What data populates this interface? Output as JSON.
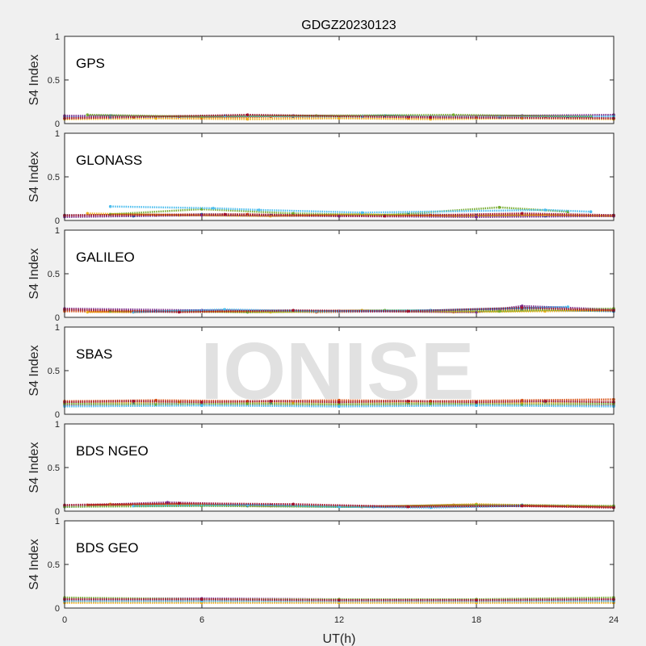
{
  "chart_data": {
    "type": "scatter",
    "title": "GDGZ20230123",
    "xlabel": "UT(h)",
    "ylabel": "S4 Index",
    "xlim": [
      0,
      24
    ],
    "ylim": [
      0,
      1
    ],
    "xticks": [
      "0",
      "6",
      "12",
      "18",
      "24"
    ],
    "yticks": [
      "0",
      "0.5",
      "1"
    ],
    "watermark": "IONISE",
    "colors": [
      "#0072bd",
      "#d95319",
      "#edb120",
      "#7e2f8e",
      "#77ac30",
      "#4dbeee",
      "#a2142f"
    ],
    "panels": [
      {
        "label": "GPS",
        "series": [
          {
            "x": [
              0,
              2,
              4,
              6,
              8,
              10,
              12,
              14,
              16,
              18,
              20,
              22,
              24
            ],
            "y": [
              0.08,
              0.09,
              0.07,
              0.08,
              0.09,
              0.08,
              0.08,
              0.09,
              0.08,
              0.07,
              0.09,
              0.08,
              0.09
            ]
          },
          {
            "x": [
              0,
              3,
              6,
              9,
              12,
              15,
              18,
              21,
              24
            ],
            "y": [
              0.06,
              0.07,
              0.06,
              0.08,
              0.07,
              0.06,
              0.07,
              0.08,
              0.06
            ]
          },
          {
            "x": [
              0,
              4,
              8,
              12,
              16,
              20,
              24
            ],
            "y": [
              0.05,
              0.06,
              0.05,
              0.06,
              0.05,
              0.06,
              0.05
            ]
          },
          {
            "x": [
              0,
              5,
              10,
              15,
              20,
              24
            ],
            "y": [
              0.09,
              0.08,
              0.09,
              0.08,
              0.09,
              0.1
            ]
          },
          {
            "x": [
              1,
              6,
              11,
              17,
              23
            ],
            "y": [
              0.1,
              0.08,
              0.09,
              0.1,
              0.08
            ]
          },
          {
            "x": [
              2,
              7,
              13,
              19,
              24
            ],
            "y": [
              0.07,
              0.09,
              0.08,
              0.07,
              0.08
            ]
          },
          {
            "x": [
              0,
              8,
              16,
              24
            ],
            "y": [
              0.06,
              0.1,
              0.07,
              0.06
            ]
          }
        ]
      },
      {
        "label": "GLONASS",
        "series": [
          {
            "x": [
              0,
              3,
              6,
              9,
              12,
              15,
              18,
              21,
              24
            ],
            "y": [
              0.06,
              0.05,
              0.07,
              0.06,
              0.05,
              0.07,
              0.06,
              0.05,
              0.06
            ]
          },
          {
            "x": [
              0,
              4,
              8,
              12,
              16,
              20,
              24
            ],
            "y": [
              0.05,
              0.06,
              0.07,
              0.05,
              0.06,
              0.07,
              0.05
            ]
          },
          {
            "x": [
              1,
              5,
              9,
              13,
              17,
              21,
              24
            ],
            "y": [
              0.08,
              0.06,
              0.05,
              0.07,
              0.05,
              0.06,
              0.05
            ]
          },
          {
            "x": [
              0,
              6,
              12,
              18,
              24
            ],
            "y": [
              0.04,
              0.06,
              0.05,
              0.04,
              0.05
            ]
          },
          {
            "x": [
              2,
              6,
              10,
              14,
              19,
              22
            ],
            "y": [
              0.07,
              0.13,
              0.08,
              0.06,
              0.15,
              0.1
            ]
          },
          {
            "x": [
              2,
              6.5,
              8.5,
              13,
              21,
              23
            ],
            "y": [
              0.16,
              0.14,
              0.12,
              0.09,
              0.12,
              0.1
            ]
          },
          {
            "x": [
              0,
              7,
              14,
              20,
              24
            ],
            "y": [
              0.06,
              0.07,
              0.05,
              0.08,
              0.06
            ]
          }
        ]
      },
      {
        "label": "GALILEO",
        "series": [
          {
            "x": [
              0,
              4,
              8,
              12,
              16,
              20,
              24
            ],
            "y": [
              0.08,
              0.07,
              0.06,
              0.07,
              0.08,
              0.09,
              0.07
            ]
          },
          {
            "x": [
              0,
              3,
              7,
              11,
              15,
              19,
              24
            ],
            "y": [
              0.07,
              0.06,
              0.08,
              0.06,
              0.07,
              0.08,
              0.09
            ]
          },
          {
            "x": [
              1,
              5,
              9,
              13,
              17,
              21,
              24
            ],
            "y": [
              0.06,
              0.07,
              0.06,
              0.08,
              0.06,
              0.07,
              0.08
            ]
          },
          {
            "x": [
              0,
              6,
              12,
              18,
              20,
              24
            ],
            "y": [
              0.1,
              0.08,
              0.07,
              0.06,
              0.13,
              0.09
            ]
          },
          {
            "x": [
              2,
              8,
              14,
              19,
              24
            ],
            "y": [
              0.07,
              0.06,
              0.08,
              0.07,
              0.1
            ]
          },
          {
            "x": [
              3,
              7,
              11,
              16,
              22
            ],
            "y": [
              0.06,
              0.09,
              0.07,
              0.08,
              0.12
            ]
          },
          {
            "x": [
              0,
              5,
              10,
              15,
              20,
              24
            ],
            "y": [
              0.09,
              0.06,
              0.08,
              0.07,
              0.11,
              0.08
            ]
          }
        ]
      },
      {
        "label": "SBAS",
        "series": [
          {
            "x": [
              0,
              3,
              6,
              9,
              12,
              15,
              18,
              21,
              24
            ],
            "y": [
              0.12,
              0.13,
              0.12,
              0.13,
              0.12,
              0.13,
              0.12,
              0.14,
              0.13
            ]
          },
          {
            "x": [
              0,
              4,
              8,
              12,
              16,
              20,
              24
            ],
            "y": [
              0.15,
              0.16,
              0.15,
              0.16,
              0.15,
              0.16,
              0.17
            ]
          },
          {
            "x": [
              0,
              5,
              10,
              15,
              20,
              24
            ],
            "y": [
              0.13,
              0.14,
              0.13,
              0.14,
              0.13,
              0.14
            ]
          },
          {
            "x": [
              0,
              6,
              12,
              18,
              24
            ],
            "y": [
              0.1,
              0.11,
              0.1,
              0.11,
              0.1
            ]
          },
          {
            "x": [
              0,
              4,
              8,
              12,
              16,
              20,
              24
            ],
            "y": [
              0.12,
              0.11,
              0.12,
              0.11,
              0.12,
              0.11,
              0.12
            ]
          },
          {
            "x": [
              0,
              6,
              12,
              18,
              24
            ],
            "y": [
              0.09,
              0.1,
              0.09,
              0.1,
              0.09
            ]
          },
          {
            "x": [
              0,
              3,
              6,
              9,
              12,
              15,
              18,
              21,
              24
            ],
            "y": [
              0.14,
              0.15,
              0.14,
              0.15,
              0.14,
              0.15,
              0.14,
              0.15,
              0.14
            ]
          }
        ]
      },
      {
        "label": "BDS NGEO",
        "series": [
          {
            "x": [
              0,
              4,
              8,
              12,
              16,
              20,
              24
            ],
            "y": [
              0.05,
              0.07,
              0.06,
              0.05,
              0.06,
              0.07,
              0.05
            ]
          },
          {
            "x": [
              1,
              5,
              9,
              13,
              17,
              21,
              24
            ],
            "y": [
              0.07,
              0.08,
              0.06,
              0.05,
              0.07,
              0.06,
              0.05
            ]
          },
          {
            "x": [
              2,
              6,
              10,
              14,
              18,
              22
            ],
            "y": [
              0.08,
              0.07,
              0.06,
              0.05,
              0.08,
              0.06
            ]
          },
          {
            "x": [
              0,
              4.5,
              9,
              13.5,
              18,
              24
            ],
            "y": [
              0.06,
              0.1,
              0.07,
              0.05,
              0.06,
              0.05
            ]
          },
          {
            "x": [
              0,
              6,
              12,
              18,
              24
            ],
            "y": [
              0.05,
              0.06,
              0.05,
              0.07,
              0.06
            ]
          },
          {
            "x": [
              3,
              8,
              12,
              16,
              20
            ],
            "y": [
              0.06,
              0.07,
              0.05,
              0.04,
              0.06
            ]
          },
          {
            "x": [
              0,
              5,
              10,
              15,
              20,
              24
            ],
            "y": [
              0.07,
              0.09,
              0.08,
              0.05,
              0.06,
              0.04
            ]
          }
        ]
      },
      {
        "label": "BDS GEO",
        "series": [
          {
            "x": [
              0,
              6,
              12,
              18,
              24
            ],
            "y": [
              0.09,
              0.09,
              0.09,
              0.09,
              0.09
            ]
          },
          {
            "x": [
              0,
              6,
              12,
              18,
              24
            ],
            "y": [
              0.07,
              0.07,
              0.07,
              0.07,
              0.07
            ]
          },
          {
            "x": [
              0,
              6,
              12,
              18,
              24
            ],
            "y": [
              0.06,
              0.06,
              0.06,
              0.06,
              0.06
            ]
          },
          {
            "x": [
              0,
              6,
              12,
              18,
              24
            ],
            "y": [
              0.11,
              0.11,
              0.1,
              0.1,
              0.1
            ]
          },
          {
            "x": [
              0,
              6,
              12,
              18,
              24
            ],
            "y": [
              0.12,
              0.1,
              0.1,
              0.1,
              0.12
            ]
          },
          {
            "x": [
              0,
              6,
              12,
              18,
              24
            ],
            "y": [
              0.08,
              0.08,
              0.08,
              0.08,
              0.08
            ]
          },
          {
            "x": [
              0,
              6,
              12,
              18,
              24
            ],
            "y": [
              0.1,
              0.1,
              0.09,
              0.09,
              0.1
            ]
          }
        ]
      }
    ]
  }
}
